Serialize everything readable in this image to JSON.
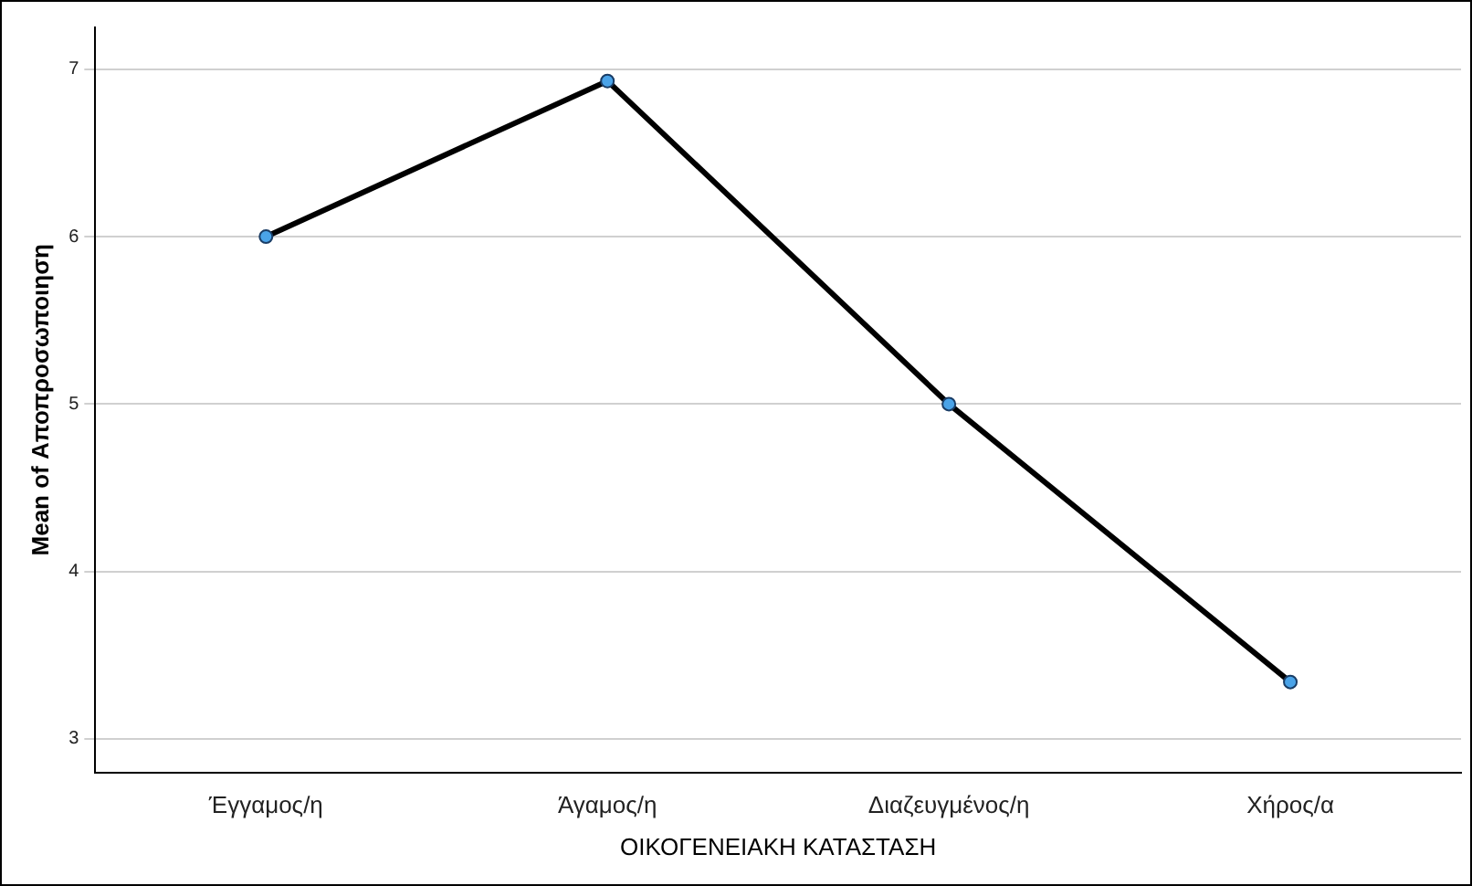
{
  "chart_data": {
    "type": "line",
    "xlabel": "ΟΙΚΟΓΕΝΕΙΑΚΗ ΚΑΤΑΣΤΑΣΗ",
    "ylabel": "Mean of Αποπροσωποιηση",
    "categories": [
      "Έγγαμος/η",
      "Άγαμος/η",
      "Διαζευγμένος/η",
      "Χήρος/α"
    ],
    "series": [
      {
        "color": "#000000",
        "values": [
          6.0,
          6.93,
          5.0,
          3.34
        ]
      }
    ],
    "ylim": [
      2.8,
      7.25
    ],
    "yticks": [
      3,
      4,
      5,
      6,
      7
    ],
    "grid": "y",
    "legend": false,
    "marker": "circle",
    "line_style": "solid"
  }
}
